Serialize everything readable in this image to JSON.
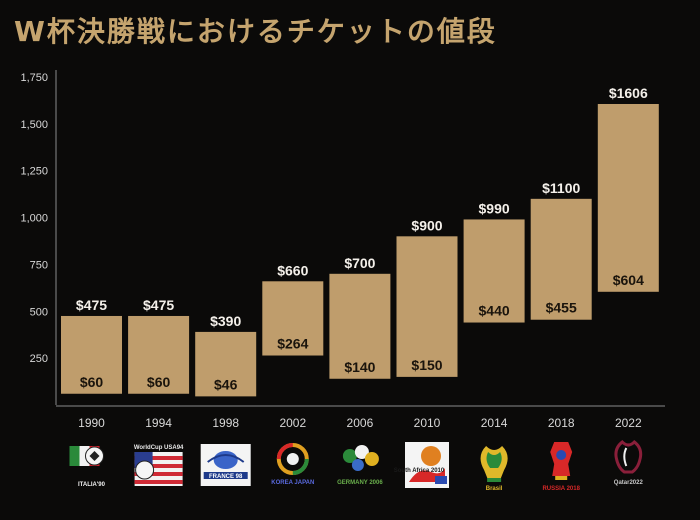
{
  "title": "W杯決勝戦におけるチケットの値段",
  "colors": {
    "bar": "#bf9d6c",
    "background": "#0b0a09",
    "title": "#c5a46e"
  },
  "chart_data": {
    "type": "bar",
    "subtype": "floating-range",
    "categories": [
      "1990",
      "1994",
      "1998",
      "2002",
      "2006",
      "2010",
      "2014",
      "2018",
      "2022"
    ],
    "low": [
      60,
      60,
      46,
      264,
      140,
      150,
      440,
      455,
      604
    ],
    "high": [
      475,
      475,
      390,
      660,
      700,
      900,
      990,
      1100,
      1606
    ],
    "low_labels": [
      "$60",
      "$60",
      "$46",
      "$264",
      "$140",
      "$150",
      "$440",
      "$455",
      "$604"
    ],
    "high_labels": [
      "$475",
      "$475",
      "$390",
      "$660",
      "$700",
      "$900",
      "$990",
      "$1100",
      "$1606"
    ],
    "yticks": [
      250,
      500,
      750,
      1000,
      1250,
      1500,
      1750
    ],
    "ytick_labels": [
      "250",
      "500",
      "750",
      "1,000",
      "1,250",
      "1,500",
      "1,750"
    ],
    "ylim": [
      0,
      1750
    ],
    "grid": false,
    "legend": "none"
  },
  "logos": [
    {
      "icon": "italia-90-logo",
      "caption": "ITALIA'90"
    },
    {
      "icon": "usa-94-logo",
      "caption": "WorldCup USA94"
    },
    {
      "icon": "france-98-logo",
      "caption": "FRANCE 98"
    },
    {
      "icon": "korea-japan-2002-logo",
      "caption": "KOREA JAPAN"
    },
    {
      "icon": "germany-2006-logo",
      "caption": "GERMANY 2006"
    },
    {
      "icon": "south-africa-2010-logo",
      "caption": "South Africa 2010"
    },
    {
      "icon": "brasil-2014-logo",
      "caption": "Brasil"
    },
    {
      "icon": "russia-2018-logo",
      "caption": "RUSSIA 2018"
    },
    {
      "icon": "qatar-2022-logo",
      "caption": "Qatar2022"
    }
  ]
}
